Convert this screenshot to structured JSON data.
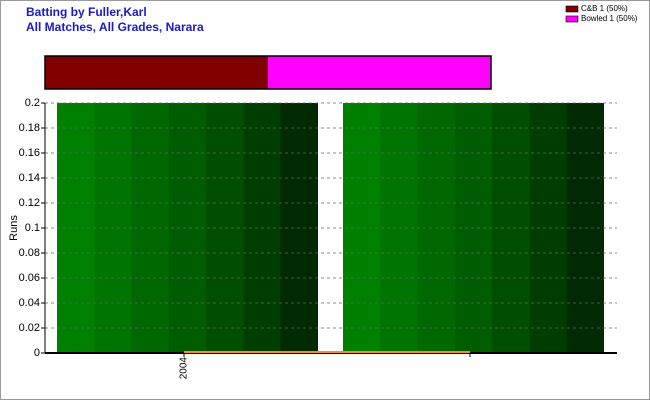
{
  "chart_data": [
    {
      "type": "stacked-hbar",
      "series": [
        {
          "name": "C&B 1 (50%)",
          "color": "#800000",
          "values": [
            50
          ]
        },
        {
          "name": "Bowled 1 (50%)",
          "color": "#ff00ff",
          "values": [
            50
          ]
        }
      ]
    },
    {
      "type": "bar",
      "title": "Batting by Fuller,Karl",
      "subtitle": "All Matches, All Grades, Narara",
      "y_label": "Runs",
      "categories": [
        "2004",
        null
      ],
      "series": [
        {
          "type": "bar",
          "color": [
            "#008000",
            "#007400",
            "#006800",
            "#005c00",
            "#004f00",
            "#003d00",
            "#002a00"
          ],
          "values": [
            0.2,
            0.2
          ]
        },
        {
          "type": "line",
          "color": "#ff8c1a",
          "values": [
            0,
            0
          ]
        }
      ],
      "ylim": [
        0,
        0.2
      ],
      "yticks": [
        0,
        0.02,
        0.04,
        0.06,
        0.08,
        0.1,
        0.12,
        0.14,
        0.16,
        0.18,
        0.2
      ],
      "grid": true
    }
  ]
}
